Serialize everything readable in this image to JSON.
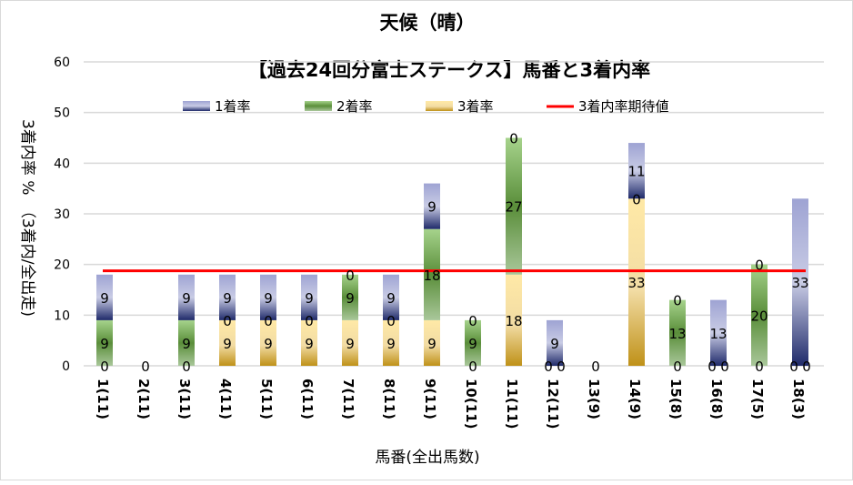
{
  "chart_data": {
    "type": "bar",
    "stacked": true,
    "title": "天候（晴）",
    "subtitle": "【過去24回分富士ステークス】馬番と3着内率",
    "xlabel": "馬番(全出馬数)",
    "ylabel": "3着内率 %　（3着内/全出走)",
    "ylim": [
      0,
      60
    ],
    "yticks": [
      0,
      10,
      20,
      30,
      40,
      50,
      60
    ],
    "grid": true,
    "legend_position": "top",
    "categories": [
      "1(11)",
      "2(11)",
      "3(11)",
      "4(11)",
      "5(11)",
      "6(11)",
      "7(11)",
      "8(11)",
      "9(11)",
      "10(11)",
      "11(11)",
      "12(11)",
      "13(9)",
      "14(9)",
      "15(8)",
      "16(8)",
      "17(5)",
      "18(3)"
    ],
    "series": [
      {
        "name": "3着率",
        "color": "#c9a227",
        "values": [
          0,
          0,
          0,
          9,
          9,
          9,
          9,
          9,
          9,
          0,
          18,
          0,
          0,
          33,
          0,
          0,
          0,
          0
        ]
      },
      {
        "name": "2着率",
        "color": "#6a9e45",
        "values": [
          9,
          0,
          9,
          0,
          0,
          0,
          9,
          0,
          18,
          9,
          27,
          0,
          0,
          0,
          13,
          0,
          20,
          0
        ]
      },
      {
        "name": "1着率",
        "color": "#3a4690",
        "values": [
          9,
          0,
          9,
          9,
          9,
          9,
          0,
          9,
          9,
          0,
          0,
          9,
          0,
          11,
          0,
          13,
          0,
          33
        ]
      }
    ],
    "reference_line": {
      "name": "3着内率期待値",
      "value": 18.75,
      "color": "#ff0000"
    },
    "legend_order": [
      "1着率",
      "2着率",
      "3着率",
      "3着内率期待値"
    ]
  }
}
